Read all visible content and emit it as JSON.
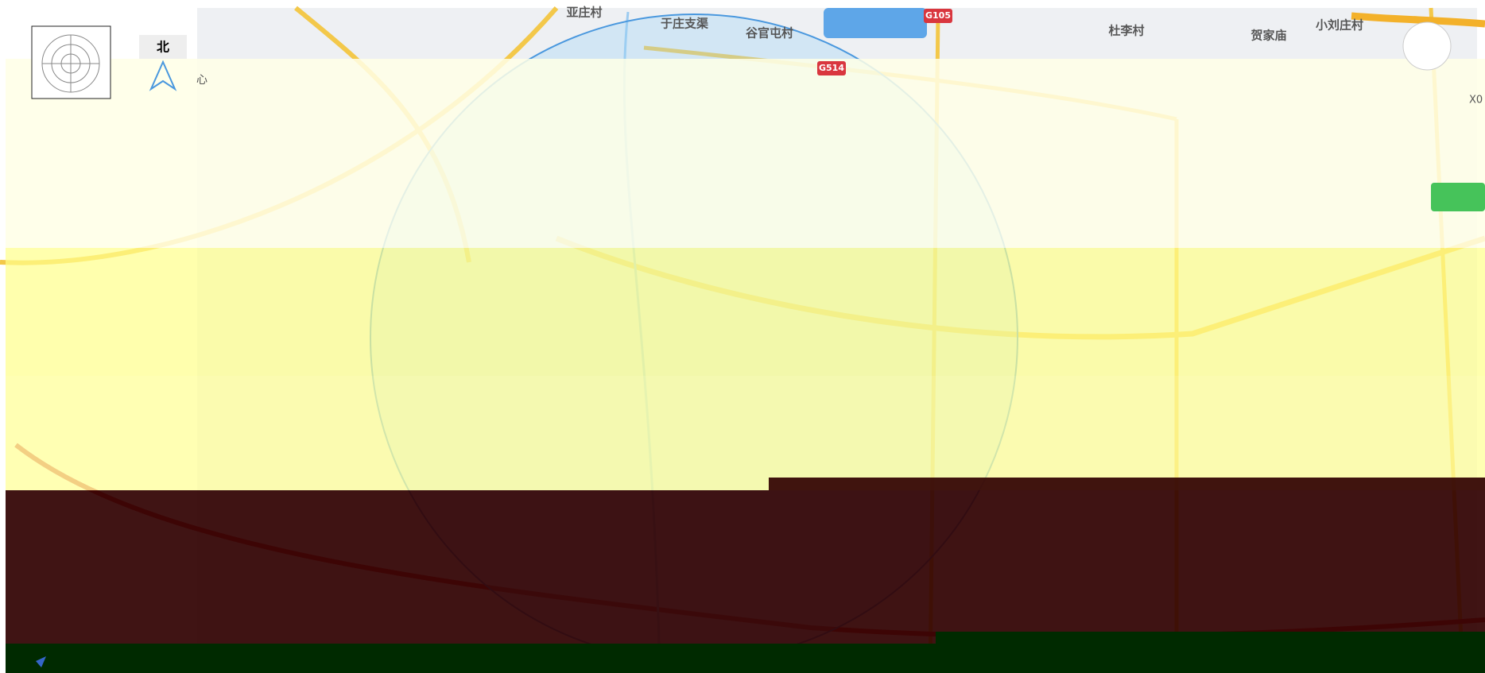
{
  "map": {
    "places": [
      "亚庄村",
      "于庄支渠",
      "谷官屯村",
      "杜李村",
      "贺家庙",
      "小刘庄村"
    ],
    "road_shields": [
      "G105",
      "G514"
    ],
    "compass_label": "北",
    "center_label": "心",
    "zoom_label": "X0"
  }
}
